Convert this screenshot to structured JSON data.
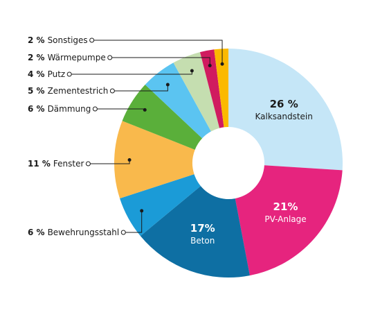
{
  "chart_data": {
    "type": "donut",
    "categories": [
      "Kalksandstein",
      "PV-Anlage",
      "Beton",
      "Bewehrungsstahl",
      "Fenster",
      "Dämmung",
      "Zementestrich",
      "Putz",
      "Wärmepumpe",
      "Sonstiges"
    ],
    "values": [
      26,
      21,
      17,
      6,
      11,
      6,
      5,
      4,
      2,
      2
    ],
    "value_labels": [
      "26 %",
      "21%",
      "17%",
      "6 %",
      "11 %",
      "6 %",
      "5 %",
      "4 %",
      "2 %",
      "2 %"
    ],
    "colors": [
      "#c5e6f7",
      "#e6247e",
      "#0e6fa3",
      "#1b9bd7",
      "#f9b94c",
      "#5aaf3a",
      "#5bc4f1",
      "#c5deb0",
      "#d01b5f",
      "#fbb900"
    ]
  }
}
